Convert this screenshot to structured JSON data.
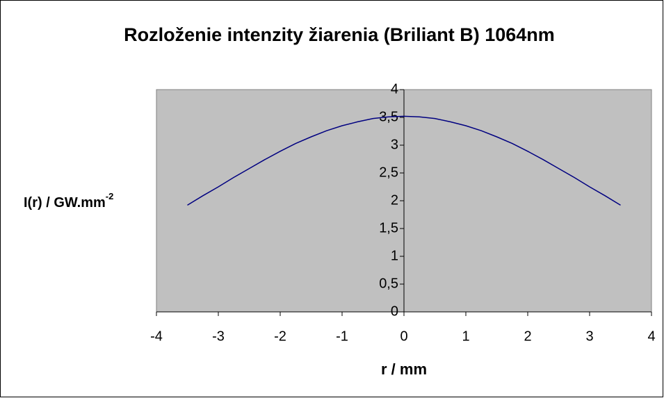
{
  "chart_data": {
    "type": "line",
    "title": "Rozloženie intenzity žiarenia (Briliant B) 1064nm",
    "x_label": "r / mm",
    "y_label": "I(r) / GW.mm",
    "y_label_sup": "-2",
    "x": [
      -3.5,
      -3.25,
      -3,
      -2.75,
      -2.5,
      -2.25,
      -2,
      -1.75,
      -1.5,
      -1.25,
      -1,
      -0.75,
      -0.5,
      -0.25,
      0,
      0.25,
      0.5,
      0.75,
      1,
      1.25,
      1.5,
      1.75,
      2,
      2.25,
      2.5,
      2.75,
      3,
      3.25,
      3.5
    ],
    "series": [
      {
        "color": "#000080",
        "values": [
          1.92,
          2.09,
          2.25,
          2.42,
          2.58,
          2.74,
          2.89,
          3.03,
          3.15,
          3.26,
          3.35,
          3.42,
          3.48,
          3.51,
          3.52,
          3.51,
          3.48,
          3.42,
          3.35,
          3.26,
          3.15,
          3.03,
          2.89,
          2.74,
          2.58,
          2.42,
          2.25,
          2.09,
          1.92
        ]
      }
    ],
    "xlim": [
      -4,
      4
    ],
    "xticks": [
      -4,
      -3,
      -2,
      -1,
      0,
      1,
      2,
      3,
      4
    ],
    "ylim": [
      0,
      4
    ],
    "yticks": [
      0,
      {
        "value": 0.5,
        "label": "0,5"
      },
      1,
      {
        "value": 1.5,
        "label": "1,5"
      },
      2,
      {
        "value": 2.5,
        "label": "2,5"
      },
      3,
      {
        "value": 3.5,
        "label": "3,5"
      },
      4
    ],
    "plot_background": "#c0c0c0"
  }
}
